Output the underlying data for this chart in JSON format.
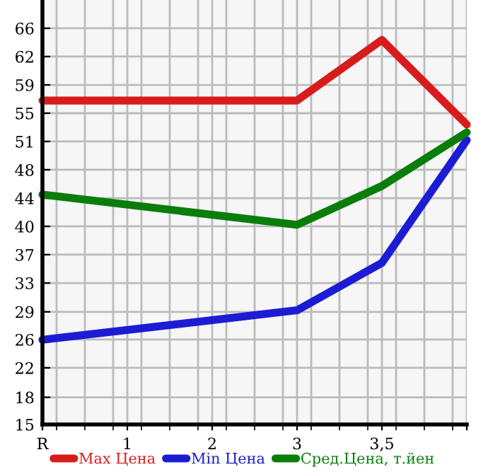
{
  "chart_data": {
    "type": "line",
    "categories": [
      "R",
      "1",
      "2",
      "3",
      "3,5",
      null
    ],
    "series": [
      {
        "name": "Max Цена",
        "color": "#d81c1c",
        "values": [
          56.7,
          null,
          null,
          56.7,
          64.5,
          53.6
        ]
      },
      {
        "name": "Min Цена",
        "color": "#1c1cd4",
        "values": [
          25.9,
          null,
          null,
          29.7,
          35.8,
          51.6
        ]
      },
      {
        "name": "Сред.Цена, т.йен",
        "color": "#0a7d0a",
        "values": [
          44.6,
          null,
          null,
          40.7,
          45.7,
          52.6
        ]
      }
    ],
    "ylim": [
      15,
      69.64
    ],
    "yticks": [
      15,
      {
        "value": 18.5,
        "label": "18"
      },
      {
        "value": 22.29,
        "label": "22"
      },
      {
        "value": 25.93,
        "label": "26"
      },
      {
        "value": 29.5,
        "label": "29"
      },
      {
        "value": 33.21,
        "label": "33"
      },
      {
        "value": 36.86,
        "label": "37"
      },
      {
        "value": 40.5,
        "label": "40"
      },
      {
        "value": 44.14,
        "label": "44"
      },
      {
        "value": 47.79,
        "label": "48"
      },
      {
        "value": 51.43,
        "label": "51"
      },
      {
        "value": 55.07,
        "label": "55"
      },
      {
        "value": 58.71,
        "label": "59"
      },
      {
        "value": 62.36,
        "label": "62"
      },
      66
    ],
    "grid": true,
    "legend": "bottom",
    "marker": "none",
    "line_style": "solid"
  }
}
